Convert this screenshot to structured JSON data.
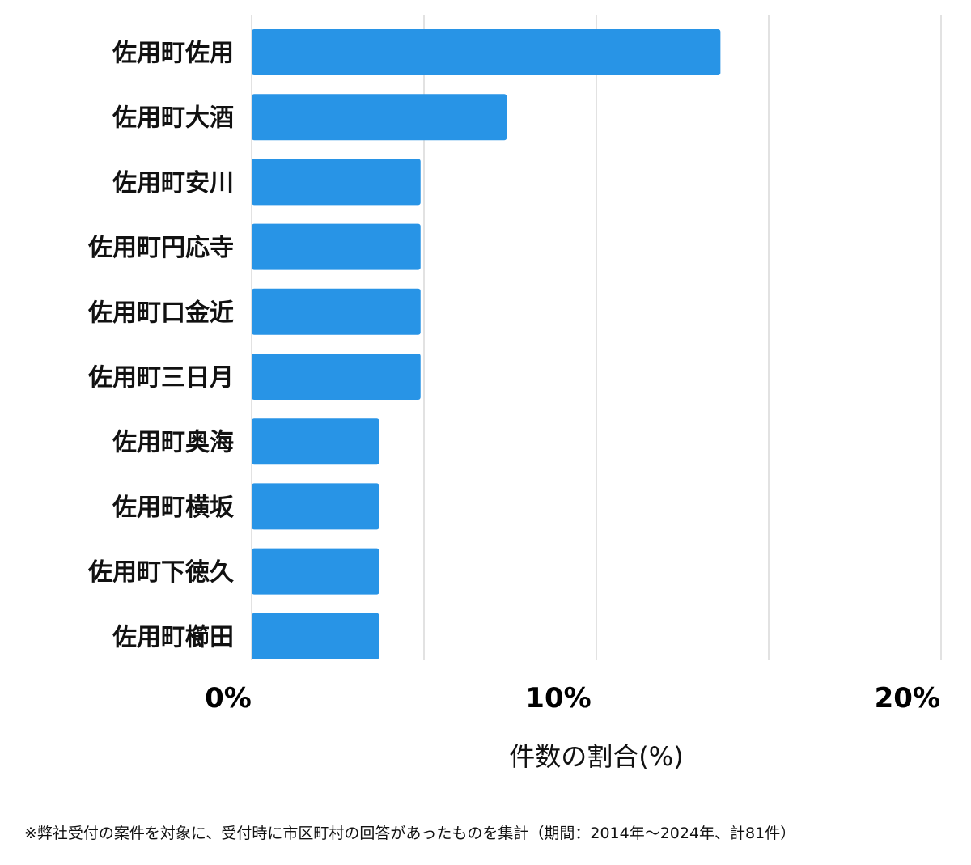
{
  "chart_data": {
    "type": "bar",
    "orientation": "horizontal",
    "categories": [
      "佐用町佐用",
      "佐用町大酒",
      "佐用町安川",
      "佐用町円応寺",
      "佐用町口金近",
      "佐用町三日月",
      "佐用町奥海",
      "佐用町横坂",
      "佐用町下徳久",
      "佐用町櫛田"
    ],
    "values": [
      13.6,
      7.4,
      4.9,
      4.9,
      4.9,
      4.9,
      3.7,
      3.7,
      3.7,
      3.7
    ],
    "xlim": [
      0,
      20
    ],
    "x_ticks": [
      "0%",
      "10%",
      "20%"
    ],
    "xlabel": "件数の割合(%)",
    "grid": true,
    "bar_color": "#2894e6",
    "grid_color": "#d9d9d9"
  },
  "footnote": "※弊社受付の案件を対象に、受付時に市区町村の回答があったものを集計（期間：2014年～2024年、計81件）"
}
